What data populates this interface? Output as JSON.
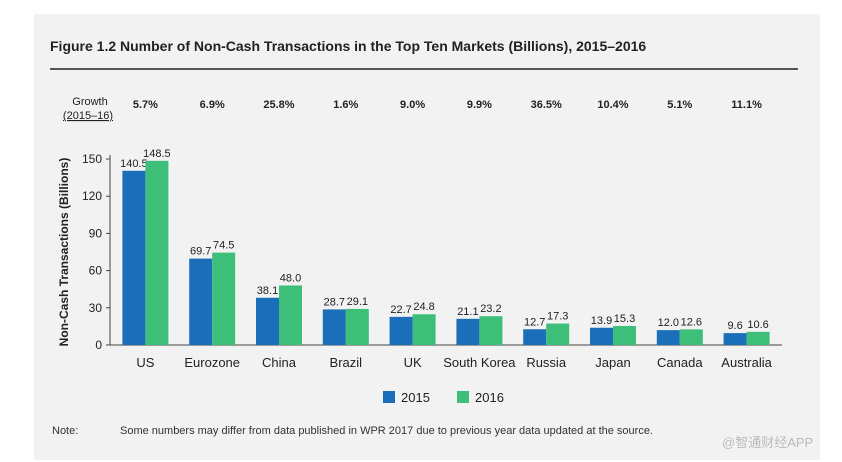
{
  "chart_data": {
    "type": "bar",
    "title": "Figure 1.2 Number of Non-Cash Transactions in the Top Ten Markets (Billions), 2015–2016",
    "ylabel": "Non-Cash Transactions (Billions)",
    "xlabel": "",
    "ylim": [
      0,
      150
    ],
    "yticks": [
      0,
      30,
      60,
      90,
      120,
      150
    ],
    "categories": [
      "US",
      "Eurozone",
      "China",
      "Brazil",
      "UK",
      "South Korea",
      "Russia",
      "Japan",
      "Canada",
      "Australia"
    ],
    "series": [
      {
        "name": "2015",
        "color": "#1b6fb8",
        "values": [
          140.5,
          69.7,
          38.1,
          28.7,
          22.7,
          21.1,
          12.7,
          13.9,
          12.0,
          9.6
        ],
        "labels": [
          "140.5",
          "69.7",
          "38.1",
          "28.7",
          "22.7",
          "21.1",
          "12.7",
          "13.9",
          "12.0",
          "9.6"
        ]
      },
      {
        "name": "2016",
        "color": "#3dbf7a",
        "values": [
          148.5,
          74.5,
          48.0,
          29.1,
          24.8,
          23.2,
          17.3,
          15.3,
          12.6,
          10.6
        ],
        "labels": [
          "148.5",
          "74.5",
          "48.0",
          "29.1",
          "24.8",
          "23.2",
          "17.3",
          "15.3",
          "12.6",
          "10.6"
        ]
      }
    ],
    "growth_label_line1": "Growth",
    "growth_label_line2": "(2015–16)",
    "growth": [
      "5.7%",
      "6.9%",
      "25.8%",
      "1.6%",
      "9.0%",
      "9.9%",
      "36.5%",
      "10.4%",
      "5.1%",
      "11.1%"
    ],
    "legend_position": "bottom-center",
    "grid": false
  },
  "note": {
    "label": "Note:",
    "text": "Some numbers may differ from data published in WPR 2017 due to previous year data updated at the source."
  },
  "watermark": "@智通财经APP"
}
